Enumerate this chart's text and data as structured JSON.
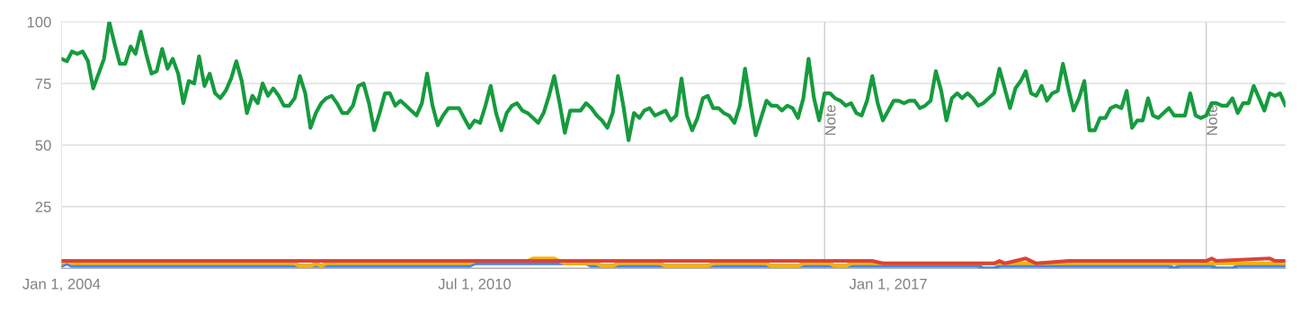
{
  "chart_data": {
    "type": "line",
    "x": [
      "2004-01",
      "2004-02",
      "2004-03",
      "2004-04",
      "2004-05",
      "2004-06",
      "2004-07",
      "2004-08",
      "2004-09",
      "2004-10",
      "2004-11",
      "2004-12",
      "2005-01",
      "2005-02",
      "2005-03",
      "2005-04",
      "2005-05",
      "2005-06",
      "2005-07",
      "2005-08",
      "2005-09",
      "2005-10",
      "2005-11",
      "2005-12",
      "2006-01",
      "2006-02",
      "2006-03",
      "2006-04",
      "2006-05",
      "2006-06",
      "2006-07",
      "2006-08",
      "2006-09",
      "2006-10",
      "2006-11",
      "2006-12",
      "2007-01",
      "2007-02",
      "2007-03",
      "2007-04",
      "2007-05",
      "2007-06",
      "2007-07",
      "2007-08",
      "2007-09",
      "2007-10",
      "2007-11",
      "2007-12",
      "2008-01",
      "2008-02",
      "2008-03",
      "2008-04",
      "2008-05",
      "2008-06",
      "2008-07",
      "2008-08",
      "2008-09",
      "2008-10",
      "2008-11",
      "2008-12",
      "2009-01",
      "2009-02",
      "2009-03",
      "2009-04",
      "2009-05",
      "2009-06",
      "2009-07",
      "2009-08",
      "2009-09",
      "2009-10",
      "2009-11",
      "2009-12",
      "2010-01",
      "2010-02",
      "2010-03",
      "2010-04",
      "2010-05",
      "2010-06",
      "2010-07",
      "2010-08",
      "2010-09",
      "2010-10",
      "2010-11",
      "2010-12",
      "2011-01",
      "2011-02",
      "2011-03",
      "2011-04",
      "2011-05",
      "2011-06",
      "2011-07",
      "2011-08",
      "2011-09",
      "2011-10",
      "2011-11",
      "2011-12",
      "2012-01",
      "2012-02",
      "2012-03",
      "2012-04",
      "2012-05",
      "2012-06",
      "2012-07",
      "2012-08",
      "2012-09",
      "2012-10",
      "2012-11",
      "2012-12",
      "2013-01",
      "2013-02",
      "2013-03",
      "2013-04",
      "2013-05",
      "2013-06",
      "2013-07",
      "2013-08",
      "2013-09",
      "2013-10",
      "2013-11",
      "2013-12",
      "2014-01",
      "2014-02",
      "2014-03",
      "2014-04",
      "2014-05",
      "2014-06",
      "2014-07",
      "2014-08",
      "2014-09",
      "2014-10",
      "2014-11",
      "2014-12",
      "2015-01",
      "2015-02",
      "2015-03",
      "2015-04",
      "2015-05",
      "2015-06",
      "2015-07",
      "2015-08",
      "2015-09",
      "2015-10",
      "2015-11",
      "2015-12",
      "2016-01",
      "2016-02",
      "2016-03",
      "2016-04",
      "2016-05",
      "2016-06",
      "2016-07",
      "2016-08",
      "2016-09",
      "2016-10",
      "2016-11",
      "2016-12",
      "2017-01",
      "2017-02",
      "2017-03",
      "2017-04",
      "2017-05",
      "2017-06",
      "2017-07",
      "2017-08",
      "2017-09",
      "2017-10",
      "2017-11",
      "2017-12",
      "2018-01",
      "2018-02",
      "2018-03",
      "2018-04",
      "2018-05",
      "2018-06",
      "2018-07",
      "2018-08",
      "2018-09",
      "2018-10",
      "2018-11",
      "2018-12",
      "2019-01",
      "2019-02",
      "2019-03",
      "2019-04",
      "2019-05",
      "2019-06",
      "2019-07",
      "2019-08",
      "2019-09",
      "2019-10",
      "2019-11",
      "2019-12",
      "2020-01",
      "2020-02",
      "2020-03",
      "2020-04",
      "2020-05",
      "2020-06",
      "2020-07",
      "2020-08",
      "2020-09",
      "2020-10",
      "2020-11",
      "2020-12",
      "2021-01",
      "2021-02",
      "2021-03",
      "2021-04",
      "2021-05",
      "2021-06",
      "2021-07",
      "2021-08",
      "2021-09",
      "2021-10",
      "2021-11",
      "2021-12",
      "2022-01",
      "2022-02",
      "2022-03",
      "2022-04",
      "2022-05",
      "2022-06",
      "2022-07",
      "2022-08",
      "2022-09",
      "2022-10",
      "2022-11",
      "2022-12",
      "2023-01",
      "2023-02",
      "2023-03",
      "2023-04"
    ],
    "series": [
      {
        "color": "#4285f4",
        "x": [
          "2004-01",
          "2004-02",
          "2004-03",
          "2010-06",
          "2010-07",
          "2012-04",
          "2012-05",
          "2016-01",
          "2016-02",
          "2018-06",
          "2018-07",
          "2018-09",
          "2018-10",
          "2021-06",
          "2021-07",
          "2021-08",
          "2022-02",
          "2022-03",
          "2022-06",
          "2022-07",
          "2023-04"
        ],
        "values": [
          1,
          2,
          1,
          1,
          2,
          2,
          1,
          1,
          1,
          1,
          0,
          0,
          1,
          1,
          0,
          1,
          1,
          0,
          0,
          1,
          1
        ]
      },
      {
        "color": "#f4b400",
        "x": [
          "2004-01",
          "2004-02",
          "2004-03",
          "2007-09",
          "2007-10",
          "2007-12",
          "2008-01",
          "2008-02",
          "2008-03",
          "2010-06",
          "2010-07",
          "2011-05",
          "2011-06",
          "2011-10",
          "2011-12",
          "2012-06",
          "2012-07",
          "2012-09",
          "2012-10",
          "2013-06",
          "2013-07",
          "2014-03",
          "2014-04",
          "2015-02",
          "2015-03",
          "2015-08",
          "2015-09",
          "2016-02",
          "2016-03",
          "2016-05",
          "2016-06",
          "2023-04"
        ],
        "values": [
          2,
          3,
          2,
          2,
          1,
          1,
          2,
          1,
          2,
          2,
          3,
          3,
          4,
          4,
          2,
          2,
          1,
          1,
          2,
          2,
          1,
          1,
          2,
          2,
          1,
          1,
          2,
          2,
          1,
          1,
          2,
          2
        ]
      },
      {
        "color": "#db4437",
        "x": [
          "2004-01",
          "2016-10",
          "2016-12",
          "2018-09",
          "2018-10",
          "2018-11",
          "2019-01",
          "2019-03",
          "2019-05",
          "2019-11",
          "2022-01",
          "2022-02",
          "2022-03",
          "2023-01",
          "2023-02",
          "2023-04"
        ],
        "values": [
          3,
          3,
          2,
          2,
          3,
          2,
          3,
          4,
          2,
          3,
          3,
          4,
          3,
          4,
          3,
          3
        ]
      },
      {
        "color": "#169b3e",
        "values": [
          85,
          84,
          88,
          87,
          88,
          84,
          73,
          79,
          85,
          100,
          91,
          83,
          83,
          90,
          87,
          96,
          87,
          79,
          80,
          89,
          81,
          85,
          79,
          67,
          76,
          75,
          86,
          74,
          79,
          71,
          69,
          72,
          77,
          84,
          76,
          63,
          70,
          67,
          75,
          70,
          73,
          70,
          66,
          66,
          69,
          78,
          71,
          57,
          63,
          67,
          69,
          70,
          67,
          63,
          63,
          66,
          74,
          75,
          67,
          56,
          63,
          71,
          71,
          66,
          68,
          66,
          64,
          62,
          67,
          79,
          66,
          58,
          62,
          65,
          65,
          65,
          61,
          57,
          60,
          59,
          66,
          74,
          63,
          56,
          63,
          66,
          67,
          64,
          63,
          61,
          59,
          63,
          70,
          78,
          67,
          55,
          64,
          64,
          64,
          67,
          65,
          62,
          60,
          57,
          63,
          78,
          66,
          52,
          63,
          61,
          64,
          65,
          62,
          63,
          64,
          60,
          62,
          77,
          62,
          56,
          61,
          69,
          70,
          65,
          65,
          63,
          62,
          59,
          66,
          81,
          67,
          54,
          61,
          68,
          66,
          66,
          64,
          66,
          65,
          61,
          69,
          85,
          69,
          60,
          71,
          71,
          69,
          68,
          66,
          67,
          63,
          62,
          68,
          78,
          67,
          60,
          64,
          68,
          68,
          67,
          68,
          68,
          65,
          66,
          68,
          80,
          72,
          60,
          69,
          71,
          69,
          71,
          69,
          66,
          67,
          69,
          71,
          81,
          73,
          65,
          73,
          76,
          80,
          71,
          70,
          74,
          68,
          71,
          72,
          83,
          73,
          64,
          69,
          76,
          56,
          56,
          61,
          61,
          65,
          66,
          65,
          72,
          57,
          60,
          60,
          69,
          62,
          61,
          63,
          65,
          62,
          62,
          62,
          71,
          62,
          61,
          62,
          67,
          67,
          66,
          66,
          69,
          63,
          67,
          67,
          74,
          69,
          64,
          71,
          70,
          71,
          66
        ]
      }
    ],
    "xlim": [
      "2004-01",
      "2023-04"
    ],
    "xticks": [
      {
        "value": "2004-01-01",
        "label": "Jan 1, 2004"
      },
      {
        "value": "2010-07-01",
        "label": "Jul 1, 2010"
      },
      {
        "value": "2017-01-01",
        "label": "Jan 1, 2017"
      }
    ],
    "ylim": [
      0,
      100
    ],
    "yticks": [
      {
        "value": 0,
        "label": null
      },
      25,
      50,
      75,
      100
    ],
    "ref_lines": [
      {
        "axis": "x",
        "value": "2016-01-01",
        "label": "Note",
        "color": "#cccccc"
      },
      {
        "axis": "x",
        "value": "2022-01-01",
        "label": "Note",
        "color": "#cccccc"
      }
    ],
    "grid": "y",
    "line_style": "solid",
    "marker": "none",
    "legend": false
  }
}
